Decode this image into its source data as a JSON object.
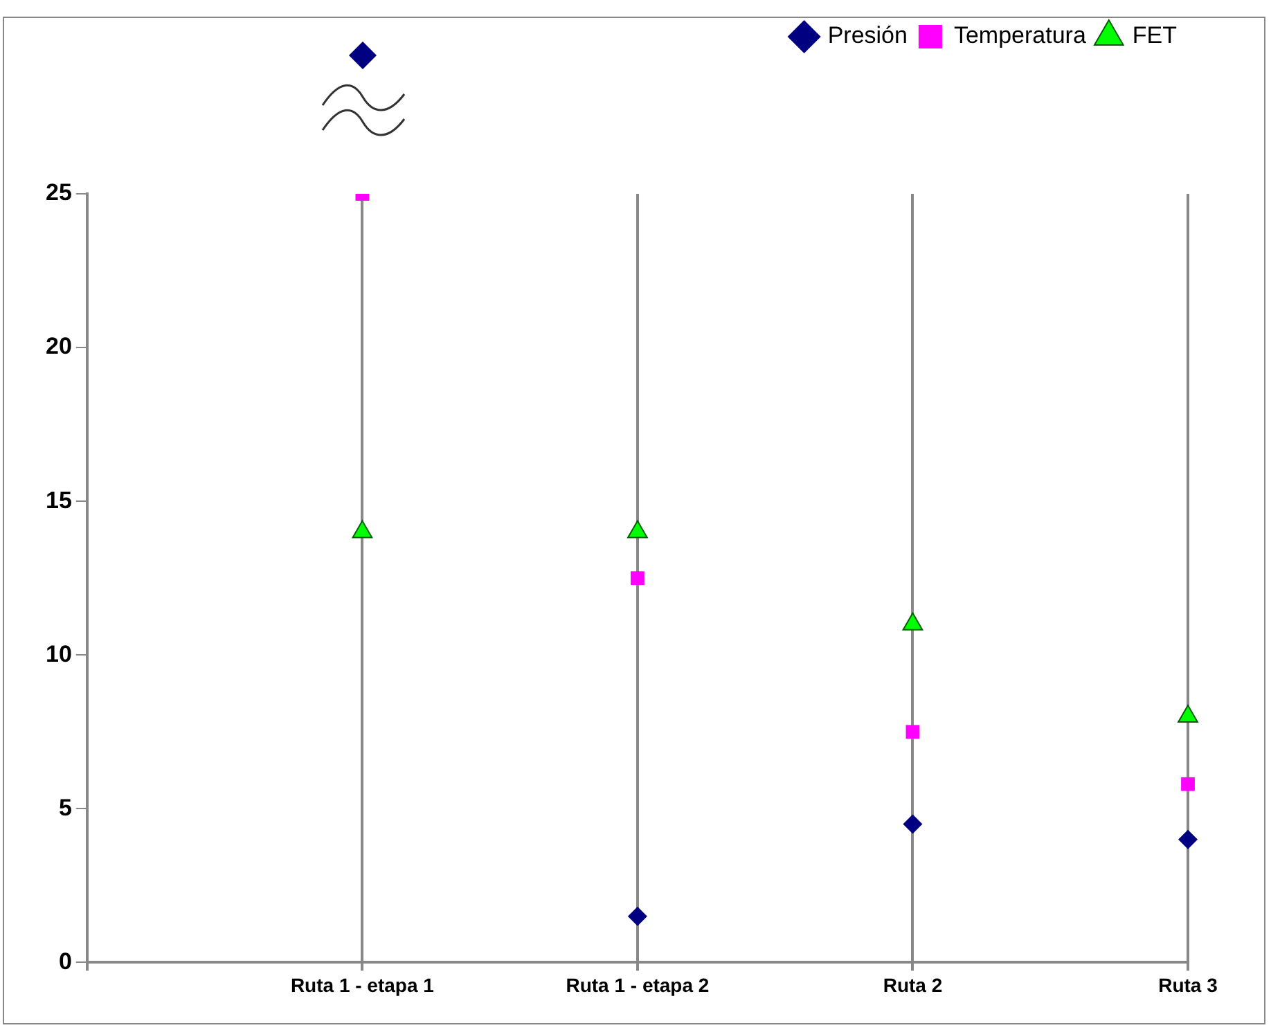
{
  "chart_data": {
    "type": "scatter",
    "categories": [
      null,
      "Ruta 1 - etapa 1",
      "Ruta 1 - etapa 2",
      "Ruta 2",
      "Ruta 3"
    ],
    "series": [
      {
        "name": "Presión",
        "color": "#000080",
        "marker": "diamond",
        "values": [
          null,
          null,
          1.5,
          4.5,
          4
        ]
      },
      {
        "name": "Temperatura",
        "color": "#ff00ff",
        "marker": "square",
        "values": [
          null,
          25,
          12.5,
          7.5,
          5.8
        ]
      },
      {
        "name": "FET",
        "color": "#00ff00",
        "marker": "triangle",
        "values": [
          null,
          14,
          14,
          11,
          8
        ]
      }
    ],
    "ylim": [
      0,
      25
    ],
    "yticks": [
      0,
      5,
      10,
      15,
      20,
      25
    ],
    "grid": "x",
    "legend": "top right"
  }
}
